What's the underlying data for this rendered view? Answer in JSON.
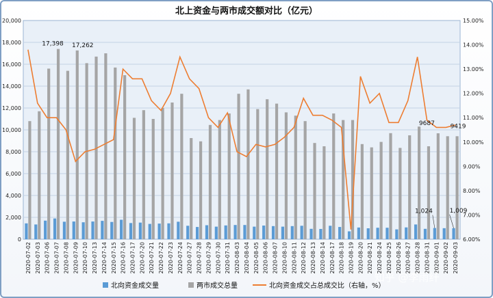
{
  "chart_data": {
    "type": "bar",
    "title": "北上资金与两市成交额对比（亿元）",
    "y_left_range": [
      0,
      20000
    ],
    "y_left_ticks": [
      "0",
      "2,000",
      "4,000",
      "6,000",
      "8,000",
      "10,000",
      "12,000",
      "14,000",
      "16,000",
      "18,000",
      "20,000"
    ],
    "y_right_range": [
      6,
      15
    ],
    "y_right_ticks": [
      "6.00%",
      "7.00%",
      "8.00%",
      "9.00%",
      "10.00%",
      "11.00%",
      "12.00%",
      "13.00%",
      "14.00%",
      "15.00%"
    ],
    "grid": "horizontal",
    "legend_position": "bottom",
    "categories": [
      "2020-07-02",
      "2020-07-03",
      "2020-07-06",
      "2020-07-07",
      "2020-07-08",
      "2020-07-09",
      "2020-07-10",
      "2020-07-13",
      "2020-07-14",
      "2020-07-15",
      "2020-07-16",
      "2020-07-17",
      "2020-07-20",
      "2020-07-21",
      "2020-07-22",
      "2020-07-23",
      "2020-07-24",
      "2020-07-27",
      "2020-07-28",
      "2020-07-29",
      "2020-07-30",
      "2020-07-31",
      "2020-08-03",
      "2020-08-04",
      "2020-08-05",
      "2020-08-06",
      "2020-08-07",
      "2020-08-10",
      "2020-08-11",
      "2020-08-12",
      "2020-08-13",
      "2020-08-14",
      "2020-08-17",
      "2020-08-18",
      "2020-08-19",
      "2020-08-20",
      "2020-08-21",
      "2020-08-24",
      "2020-08-25",
      "2020-08-26",
      "2020-08-27",
      "2020-08-28",
      "2020-08-31",
      "2020-09-01",
      "2020-09-02",
      "2020-09-03"
    ],
    "series": [
      {
        "name": "北向资金成交量",
        "color": "#5b9bd5",
        "axis": "left",
        "values": [
          1450,
          1350,
          1700,
          1900,
          1600,
          1620,
          1550,
          1620,
          1680,
          1580,
          1780,
          1480,
          1520,
          1400,
          1430,
          1450,
          1600,
          1230,
          1120,
          1280,
          1150,
          1260,
          1300,
          1300,
          1150,
          1250,
          1200,
          1150,
          1200,
          1230,
          950,
          940,
          1230,
          1120,
          720,
          1070,
          1000,
          1050,
          1050,
          900,
          1080,
          1350,
          950,
          1024,
          1009,
          1009
        ]
      },
      {
        "name": "两市成交总量",
        "color": "#a5a5a5",
        "axis": "left",
        "values": [
          10800,
          11700,
          15600,
          17398,
          15400,
          17262,
          16100,
          16700,
          17000,
          15700,
          15000,
          11100,
          11800,
          11000,
          12000,
          12500,
          13300,
          9250,
          8950,
          10450,
          10900,
          11500,
          13300,
          13700,
          11900,
          12800,
          12400,
          11600,
          11300,
          10800,
          8800,
          8500,
          11500,
          10900,
          10900,
          8700,
          8400,
          8900,
          9700,
          8350,
          9500,
          10300,
          8500,
          9687,
          9419,
          9419
        ]
      },
      {
        "name": "北向资金成交占总成交比（右轴，%）",
        "color": "#ed7d31",
        "axis": "right",
        "values": [
          13.8,
          11.6,
          11.0,
          11.0,
          10.5,
          9.2,
          9.6,
          9.7,
          9.9,
          10.1,
          13.0,
          12.6,
          12.6,
          11.7,
          11.3,
          12.0,
          13.5,
          12.6,
          12.2,
          11.0,
          10.6,
          11.2,
          9.6,
          9.4,
          9.9,
          9.8,
          9.9,
          10.2,
          10.6,
          11.8,
          11.1,
          11.1,
          10.9,
          10.6,
          6.4,
          12.7,
          11.6,
          12.0,
          10.8,
          10.8,
          11.7,
          13.5,
          10.9,
          10.6,
          10.6,
          10.7
        ]
      }
    ],
    "annotations": [
      {
        "label": "17,398",
        "series": 1,
        "index": 3
      },
      {
        "label": "17,262",
        "series": 1,
        "index": 5
      },
      {
        "label": "9687",
        "series": 1,
        "index": 43
      },
      {
        "label": "9419",
        "series": 1,
        "index": 45
      },
      {
        "label": "1,024",
        "series": 0,
        "index": 43
      },
      {
        "label": "1,009",
        "series": 0,
        "index": 45
      }
    ]
  },
  "watermark": "知乎 @李雨纤"
}
